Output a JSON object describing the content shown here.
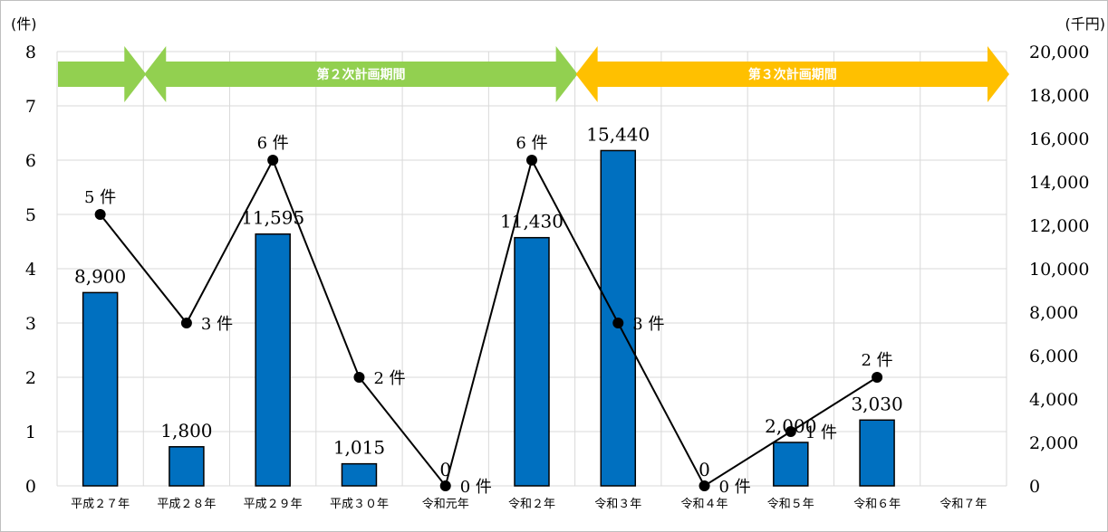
{
  "chart_data": {
    "type": "bar",
    "categories": [
      "平成２７年",
      "平成２８年",
      "平成２９年",
      "平成３０年",
      "令和元年",
      "令和２年",
      "令和３年",
      "令和４年",
      "令和５年",
      "令和６年",
      "令和７年"
    ],
    "y_left": {
      "unit_label": "(件)",
      "range": [
        0,
        8
      ],
      "ticks": [
        "0",
        "1",
        "2",
        "3",
        "4",
        "5",
        "6",
        "7",
        "8"
      ]
    },
    "y_right": {
      "unit_label": "(千円)",
      "range": [
        0,
        20000
      ],
      "ticks": [
        "0",
        "2,000",
        "4,000",
        "6,000",
        "8,000",
        "10,000",
        "12,000",
        "14,000",
        "16,000",
        "18,000",
        "20,000"
      ]
    },
    "grid": true,
    "series": [
      {
        "kind": "bar",
        "axis": "right",
        "color": "#0070c0",
        "values": [
          8900,
          1800,
          11595,
          1015,
          0,
          11430,
          15440,
          0,
          2000,
          3030,
          null
        ],
        "labels": [
          "8,900",
          "1,800",
          "11,595",
          "1,015",
          "0",
          "11,430",
          "15,440",
          "0",
          "2,000",
          "3,030",
          ""
        ]
      },
      {
        "kind": "line",
        "axis": "left",
        "color": "#000000",
        "values": [
          5,
          3,
          6,
          2,
          0,
          6,
          3,
          0,
          1,
          2,
          null
        ],
        "labels": [
          "5 件",
          "3 件",
          "6 件",
          "2 件",
          "0 件",
          "6 件",
          "3 件",
          "0 件",
          "1 件",
          "2 件",
          ""
        ]
      }
    ],
    "periods": [
      {
        "label": "",
        "color": "#92d050",
        "from": 0,
        "to": 1
      },
      {
        "label": "第２次計画期間",
        "color": "#92d050",
        "from": 1,
        "to": 6
      },
      {
        "label": "第３次計画期間",
        "color": "#ffc000",
        "from": 6,
        "to": 11
      }
    ]
  }
}
